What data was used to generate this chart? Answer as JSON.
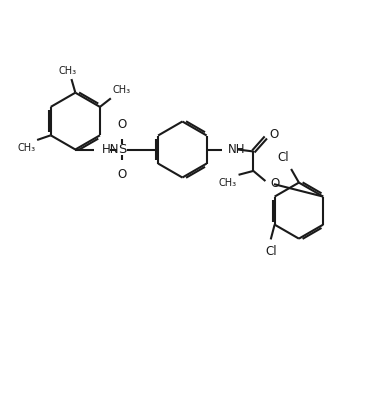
{
  "background_color": "#ffffff",
  "line_color": "#1a1a1a",
  "line_width": 1.5,
  "text_color": "#1a1a1a",
  "font_size": 8.5,
  "figsize": [
    3.92,
    3.94
  ],
  "dpi": 100,
  "xlim": [
    0,
    10
  ],
  "ylim": [
    0,
    10
  ]
}
